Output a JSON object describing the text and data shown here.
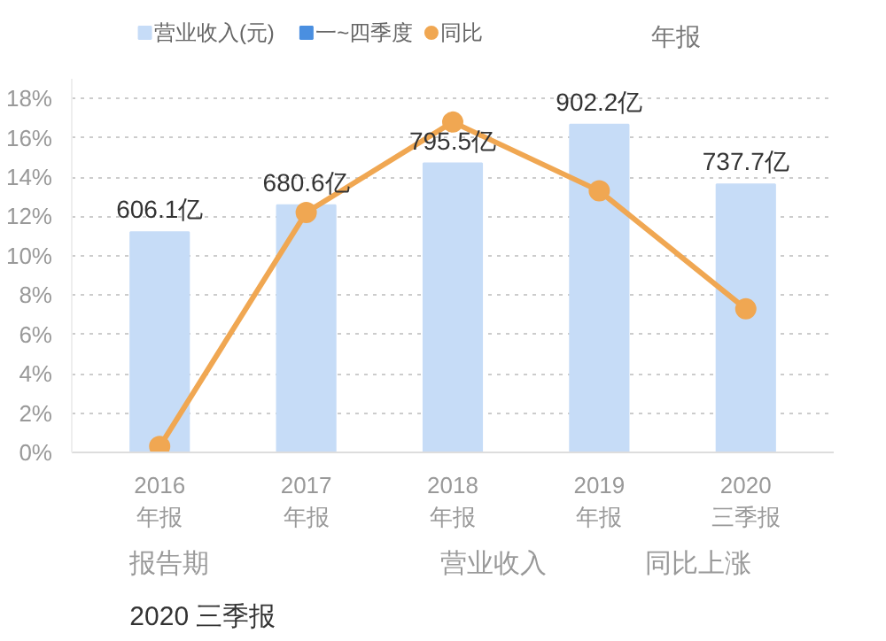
{
  "chart_data": {
    "type": "bar",
    "categories": [
      "2016\n年报",
      "2017\n年报",
      "2018\n年报",
      "2019\n年报",
      "2020\n三季报"
    ],
    "series": [
      {
        "name": "营业收入(元)",
        "axis": "y2",
        "color": "#c6dcf7",
        "values": [
          606.1,
          680.6,
          795.5,
          902.2,
          737.7
        ],
        "value_labels": [
          "606.1亿",
          "680.6亿",
          "795.5亿",
          "902.2亿",
          "737.7亿"
        ]
      },
      {
        "name": "一~四季度",
        "axis": "y2",
        "color": "#4a8fe0",
        "values": [
          null,
          null,
          null,
          null,
          null
        ]
      },
      {
        "name": "同比",
        "type": "line",
        "color": "#f0a752",
        "values": [
          0.3,
          12.2,
          16.8,
          13.3,
          7.3
        ]
      }
    ],
    "ylim": [
      0,
      19
    ],
    "yticks": [
      {
        "value": 0,
        "label": "0%"
      },
      {
        "value": 2,
        "label": "2%"
      },
      {
        "value": 4,
        "label": "4%"
      },
      {
        "value": 6,
        "label": "6%"
      },
      {
        "value": 8,
        "label": "8%"
      },
      {
        "value": 10,
        "label": "10%"
      },
      {
        "value": 12,
        "label": "12%"
      },
      {
        "value": 14,
        "label": "14%"
      },
      {
        "value": 16,
        "label": "16%"
      },
      {
        "value": 18,
        "label": "18%"
      }
    ],
    "grid": "y",
    "legend": "top left",
    "marker": "circle",
    "annotations": [
      "年报",
      "报告期",
      "营业收入",
      "同比上涨",
      "2020 三季报"
    ]
  }
}
